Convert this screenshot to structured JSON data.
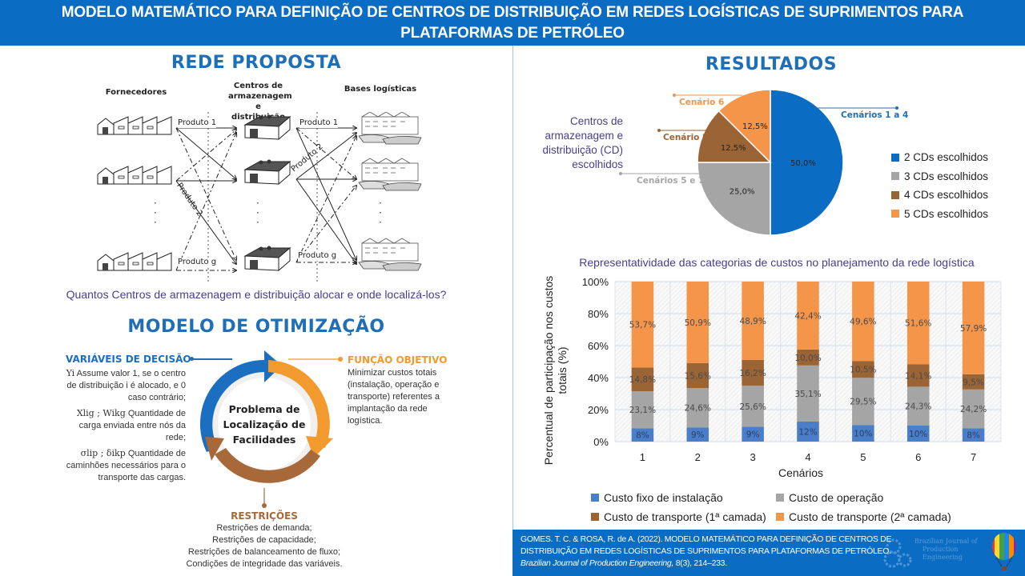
{
  "header": {
    "title_line1": "MODELO MATEMÁTICO PARA DEFINIÇÃO DE CENTROS DE DISTRIBUIÇÃO EM REDES LOGÍSTICAS DE SUPRIMENTOS PARA",
    "title_line2": "PLATAFORMAS DE PETRÓLEO"
  },
  "network": {
    "title": "REDE PROPOSTA",
    "col_suppliers": "Fornecedores",
    "col_centers": "Centros de armazenagem e distribuição",
    "col_bases": "Bases logísticas",
    "product_labels": [
      "Produto 1",
      "Produto 2",
      "Produto g",
      "Produto 1",
      "Produto 2",
      "Produto g"
    ],
    "question": "Quantos Centros de armazenagem e distribuição alocar e onde localizá-los?"
  },
  "optimization": {
    "title": "MODELO DE OTIMIZAÇÃO",
    "center_text": [
      "Problema de",
      "Localização de",
      "Facilidades"
    ],
    "decision_vars": {
      "heading": "VARIÁVEIS DE DECISÃO",
      "items": [
        {
          "symbol": "Yi",
          "text": "Assume valor 1, se o centro de distribuição i é alocado, e 0 caso contrário;"
        },
        {
          "symbol": "Xlig ; Wikg",
          "text": "Quantidade de carga enviada entre nós da rede;"
        },
        {
          "symbol": "σlip ; δikp",
          "text": "Quantidade de caminhões necessários para o transporte das cargas."
        }
      ]
    },
    "objective": {
      "heading": "FUNÇÃO OBJETIVO",
      "text": "Minimizar custos totais (instalação, operação e transporte) referentes a implantação da rede logística."
    },
    "constraints": {
      "heading": "RESTRIÇÕES",
      "items": [
        "Restrições de demanda;",
        "Restrições de capacidade;",
        "Restrições de balanceamento de fluxo;",
        "Condições de integridade das variáveis."
      ]
    },
    "colors": {
      "blue": "#1a6fc0",
      "orange": "#f29a2e",
      "brown": "#a8693a"
    }
  },
  "results": {
    "title": "RESULTADOS",
    "pie_side_label": "Centros de armazenagem e distribuição (CD) escolhidos"
  },
  "chart_data": [
    {
      "type": "pie",
      "title": "Centros de armazenagem e distribuição (CD) escolhidos",
      "slices": [
        {
          "label": "2 CDs escolhidos",
          "value": 50.0,
          "display": "50,0%",
          "callout": "Cenários 1 a 4",
          "color": "#0a6cc2"
        },
        {
          "label": "3 CDs escolhidos",
          "value": 25.0,
          "display": "25,0%",
          "callout": "Cenários 5 e 7",
          "color": "#a5a5a5"
        },
        {
          "label": "4 CDs escolhidos",
          "value": 12.5,
          "display": "12,5%",
          "callout": "Cenário 8",
          "color": "#9b6434"
        },
        {
          "label": "5 CDs escolhidos",
          "value": 12.5,
          "display": "12,5%",
          "callout": "Cenário 6",
          "color": "#f4954a"
        }
      ],
      "legend_position": "right"
    },
    {
      "type": "bar",
      "stacked": true,
      "title": "Representatividade das categorias de custos no planejamento da rede logística",
      "xlabel": "Cenários",
      "ylabel": "Percentual de participação nos custos totais (%)",
      "categories": [
        "1",
        "2",
        "3",
        "4",
        "5",
        "6",
        "7"
      ],
      "ylim": [
        0,
        100
      ],
      "yticks": [
        "0%",
        "20%",
        "40%",
        "60%",
        "80%",
        "100%"
      ],
      "grid": true,
      "legend_position": "bottom",
      "series": [
        {
          "name": "Custo fixo de instalação",
          "color": "#4a7ec8",
          "values": [
            8.4,
            8.9,
            9.3,
            12.5,
            10.4,
            10.0,
            8.4
          ],
          "labels": [
            "8%",
            "9%",
            "9%",
            "12%",
            "10%",
            "10%",
            "8%"
          ]
        },
        {
          "name": "Custo de operação",
          "color": "#a5a5a5",
          "values": [
            23.1,
            24.6,
            25.6,
            35.1,
            29.5,
            24.3,
            24.2
          ],
          "labels": [
            "23,1%",
            "24,6%",
            "25,6%",
            "35,1%",
            "29,5%",
            "24,3%",
            "24,2%"
          ]
        },
        {
          "name": "Custo de transporte (1ª camada)",
          "color": "#9b6434",
          "values": [
            14.8,
            15.6,
            16.2,
            10.0,
            10.5,
            14.1,
            9.5
          ],
          "labels": [
            "14,8%",
            "15,6%",
            "16,2%",
            "10,0%",
            "10,5%",
            "14,1%",
            "9,5%"
          ]
        },
        {
          "name": "Custo de transporte (2ª camada)",
          "color": "#f4954a",
          "values": [
            53.7,
            50.9,
            48.9,
            42.4,
            49.6,
            51.6,
            57.9
          ],
          "labels": [
            "53,7%",
            "50,9%",
            "48,9%",
            "42,4%",
            "49,6%",
            "51,6%",
            "57,9%"
          ]
        }
      ]
    }
  ],
  "footer": {
    "citation_line1": "GOMES. T. C.  & ROSA, R. de A. (2022). MODELO MATEMÁTICO PARA DEFINIÇÃO DE CENTROS DE",
    "citation_line2": "DISTRIBUIÇÃO EM REDES LOGÍSTICAS DE SUPRIMENTOS PARA PLATAFORMAS DE PETRÓLEO.",
    "journal_italic": "Brazilian Journal of Production Engineering,",
    "journal_ref": " 8(3), 214–233.",
    "logo_text_1": "Brazilian Journal of",
    "logo_text_2": "Production Engineering"
  }
}
